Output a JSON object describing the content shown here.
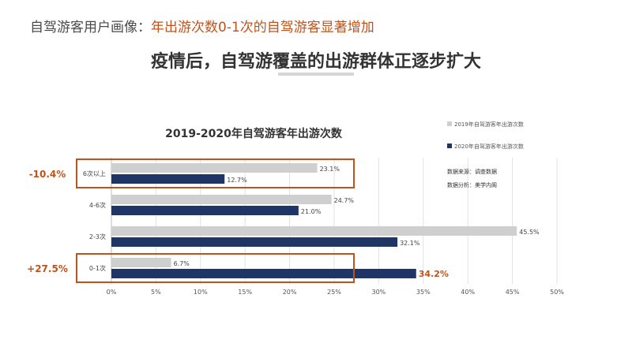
{
  "headline": {
    "prefix": "自驾游客用户画像：",
    "highlight": "年出游次数0-1次的自驾游客显著增加"
  },
  "subtitle": "疫情后，自驾游覆盖的出游群体正逐步扩大",
  "colors": {
    "accent": "#c0531c",
    "series_2019": "#cfcfcf",
    "series_2020": "#1f3566",
    "box": "#c0531c",
    "grid": "#e2e2e2",
    "text": "#444444"
  },
  "notes": {
    "source": "数据来源：调查数据",
    "analysis": "数据分析：美学内阁"
  },
  "chart_data": {
    "type": "bar",
    "orientation": "horizontal",
    "title": "2019-2020年自驾游客年出游次数",
    "categories": [
      "6次以上",
      "4-6次",
      "2-3次",
      "0-1次"
    ],
    "series": [
      {
        "name": "2019年自驾游客年出游次数",
        "values": [
          23.1,
          24.7,
          45.5,
          6.7
        ],
        "labels": [
          "23.1%",
          "24.7%",
          "45.5%",
          "6.7%"
        ]
      },
      {
        "name": "2020年自驾游客年出游次数",
        "values": [
          12.7,
          21.0,
          32.1,
          34.2
        ],
        "labels": [
          "12.7%",
          "21.0%",
          "32.1%",
          "34.2%"
        ]
      }
    ],
    "x_ticks": [
      "0%",
      "5%",
      "10%",
      "15%",
      "20%",
      "25%",
      "30%",
      "35%",
      "40%",
      "45%",
      "50%"
    ],
    "xlim": [
      0,
      50
    ],
    "grid": true,
    "legend_position": "top-right",
    "annotations": [
      {
        "category": "6次以上",
        "text": "-10.4%"
      },
      {
        "category": "0-1次",
        "text": "+27.5%"
      }
    ]
  }
}
